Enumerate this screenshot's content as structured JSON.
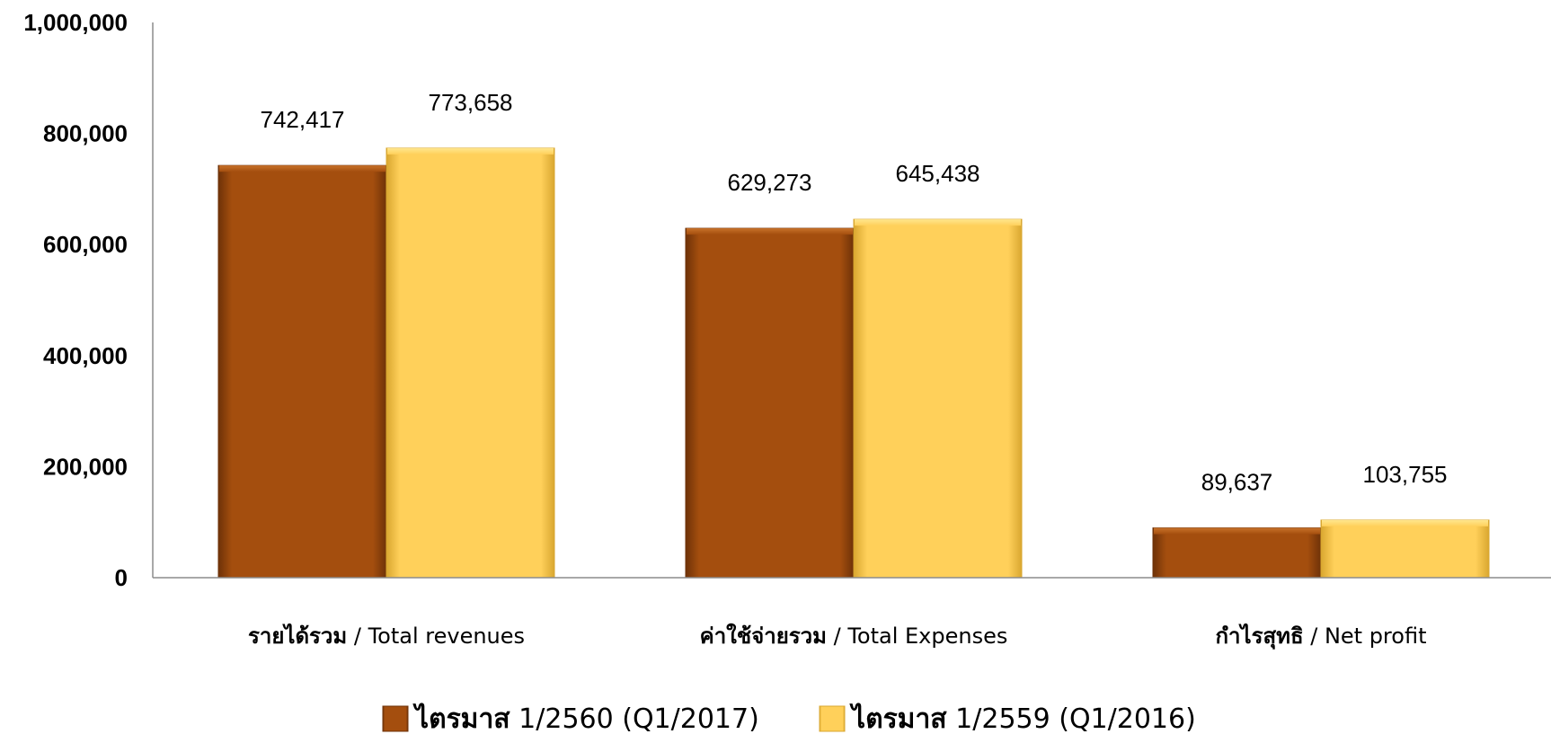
{
  "chart_data": {
    "type": "bar",
    "categories": [
      {
        "thai": "รายได้รวม",
        "eng": " / Total revenues"
      },
      {
        "thai": "ค่าใช้จ่ายรวม",
        "eng": " / Total Expenses"
      },
      {
        "thai": "กำไรสุทธิ",
        "eng": " / Net profit"
      }
    ],
    "series": [
      {
        "name_thai": "ไตรมาส",
        "name_rest": " 1/2560 (Q1/2017)",
        "values": [
          742417,
          629273,
          89637
        ],
        "value_labels": [
          "742,417",
          "629,273",
          "89,637"
        ],
        "color": "#A44E0E",
        "color_dark": "#6E3208",
        "color_light": "#C8722A"
      },
      {
        "name_thai": "ไตรมาส",
        "name_rest": " 1/2559 (Q1/2016)",
        "values": [
          773658,
          645438,
          103755
        ],
        "value_labels": [
          "773,658",
          "645,438",
          "103,755"
        ],
        "color": "#FFD05A",
        "color_dark": "#D9A730",
        "color_light": "#FFE68E"
      }
    ],
    "yticks": [
      0,
      200000,
      400000,
      600000,
      800000,
      1000000
    ],
    "ytick_labels": [
      "0",
      "200,000",
      "400,000",
      "600,000",
      "800,000",
      "1,000,000"
    ],
    "ylim": [
      0,
      1000000
    ],
    "legend_position": "bottom",
    "grid": false
  }
}
